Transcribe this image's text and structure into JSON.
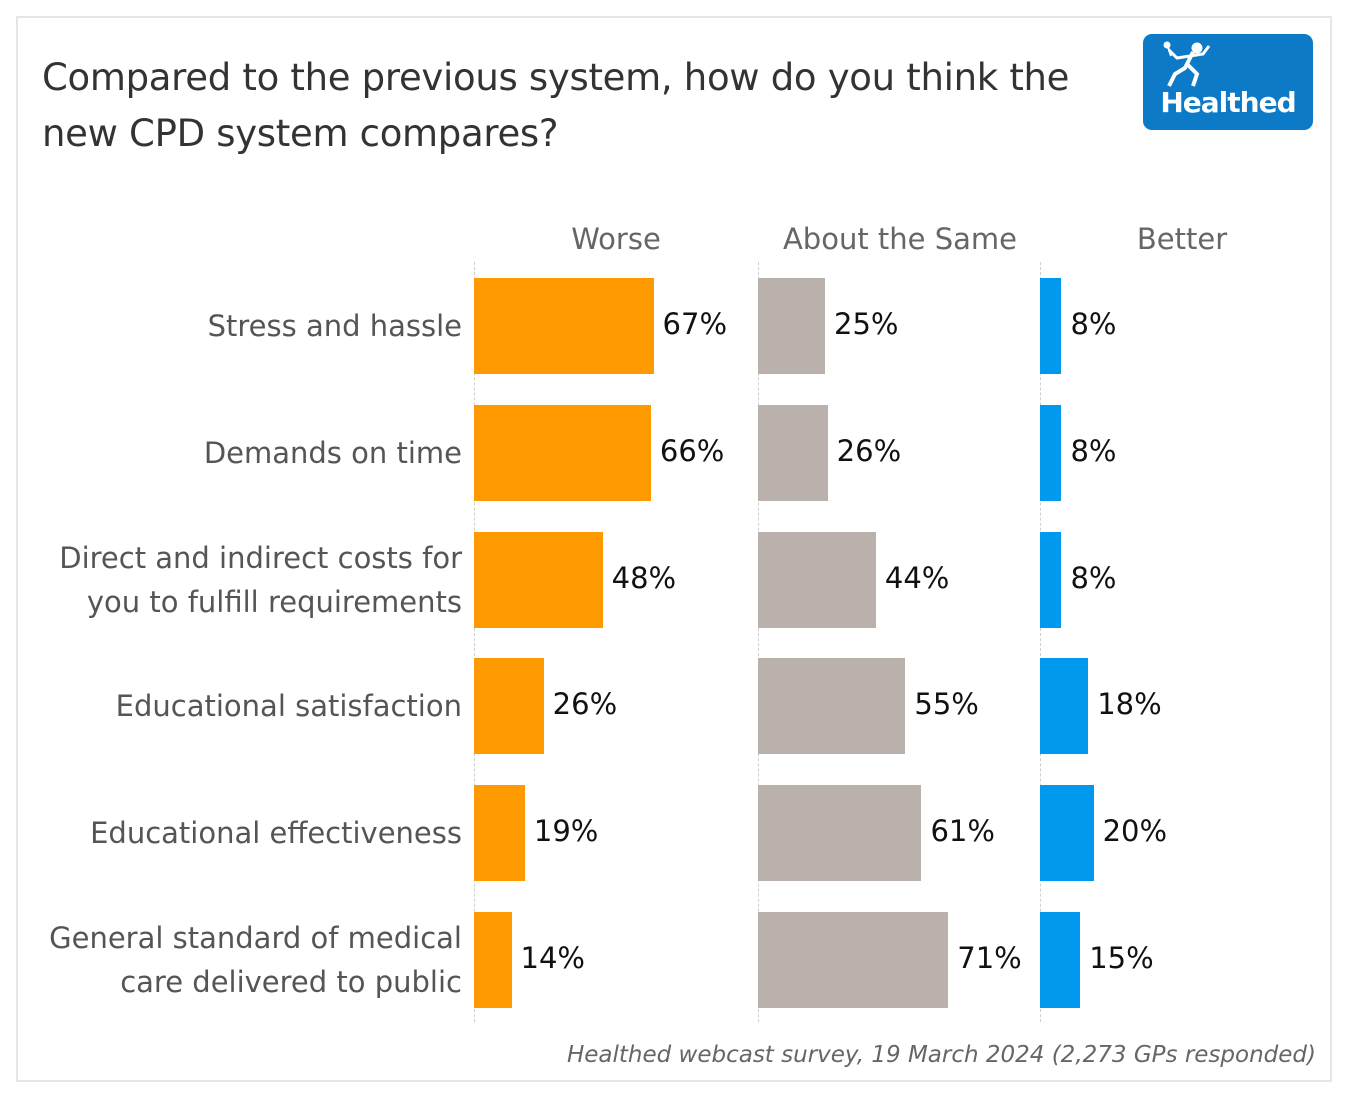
{
  "logo": {
    "text": "Healthed"
  },
  "chart_data": {
    "type": "bar",
    "orientation": "horizontal",
    "title": "Compared to the previous system, how do you think the new CPD system compares?",
    "categories": [
      [
        "Stress and hassle"
      ],
      [
        "Demands on time"
      ],
      [
        "Direct and indirect costs for",
        "you to fulfill requirements"
      ],
      [
        "Educational satisfaction"
      ],
      [
        "Educational effectiveness"
      ],
      [
        "General standard of medical",
        "care delivered to public"
      ]
    ],
    "series": [
      {
        "name": "Worse",
        "color": "#ff9900",
        "values": [
          67,
          66,
          48,
          26,
          19,
          14
        ]
      },
      {
        "name": "About the Same",
        "color": "#bab0ac",
        "values": [
          25,
          26,
          44,
          55,
          61,
          71
        ]
      },
      {
        "name": "Better",
        "color": "#0099ee",
        "values": [
          8,
          8,
          8,
          18,
          20,
          15
        ]
      }
    ],
    "value_suffix": "%",
    "xlim": [
      0,
      100
    ],
    "grid": false,
    "legend": "column-headers-top",
    "footnote": "Healthed webcast survey, 19 March 2024 (2,273 GPs responded)"
  }
}
